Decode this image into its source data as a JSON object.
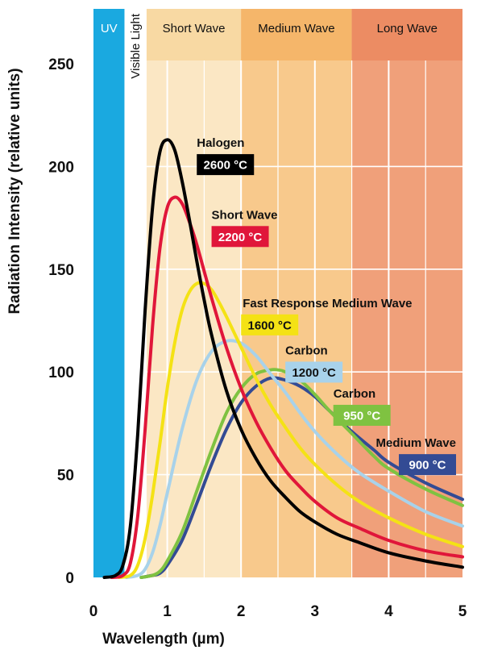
{
  "chart_data": {
    "type": "line",
    "title": "",
    "xlabel": "Wavelength (µm)",
    "ylabel": "Radiation Intensity (relative units)",
    "xlim": [
      0,
      5
    ],
    "ylim": [
      0,
      250
    ],
    "x_ticks": [
      "0",
      "1",
      "2",
      "3",
      "4",
      "5"
    ],
    "y_ticks": [
      "0",
      "50",
      "100",
      "150",
      "200",
      "250"
    ],
    "grid": true,
    "bands": [
      {
        "label": "UV",
        "x_range": [
          0,
          0.42
        ],
        "color": "#1aa9e0",
        "label_color": "#ffffff"
      },
      {
        "label": "Visible Light",
        "x_range": [
          0.42,
          0.72
        ],
        "color": "#ffffff",
        "label_color": "#111111"
      },
      {
        "label": "Short Wave",
        "x_range": [
          0.72,
          2.0
        ],
        "color": "#fbe7c4",
        "label_color": "#111111"
      },
      {
        "label": "Medium Wave",
        "x_range": [
          2.0,
          3.5
        ],
        "color": "#f8c98c",
        "label_color": "#111111"
      },
      {
        "label": "Long Wave",
        "x_range": [
          3.5,
          5.0
        ],
        "color": "#f0a07a",
        "label_color": "#111111"
      }
    ],
    "series": [
      {
        "name": "Halogen",
        "temperature": "2600 °C",
        "color": "#000000",
        "badge_bg": "#000000",
        "badge_text": "#ffffff",
        "label_anchor": [
          1.4,
          206
        ],
        "x": [
          0.3,
          0.4,
          0.5,
          0.6,
          0.7,
          0.8,
          0.9,
          1.0,
          1.1,
          1.2,
          1.3,
          1.4,
          1.5,
          1.6,
          1.8,
          2.0,
          2.2,
          2.4,
          2.6,
          2.8,
          3.0,
          3.3,
          3.6,
          4.0,
          4.5,
          5.0
        ],
        "y": [
          1,
          6,
          25,
          70,
          130,
          180,
          207,
          213,
          208,
          193,
          174,
          154,
          135,
          118,
          91,
          72,
          58,
          47,
          39,
          32,
          27,
          21,
          17,
          12,
          8,
          5
        ]
      },
      {
        "name": "Short Wave",
        "temperature": "2200 °C",
        "color": "#e0163a",
        "badge_bg": "#e0163a",
        "badge_text": "#ffffff",
        "label_anchor": [
          1.6,
          171
        ],
        "x": [
          0.4,
          0.5,
          0.6,
          0.7,
          0.8,
          0.9,
          1.0,
          1.1,
          1.2,
          1.3,
          1.4,
          1.6,
          1.8,
          2.0,
          2.2,
          2.4,
          2.6,
          2.8,
          3.0,
          3.3,
          3.6,
          4.0,
          4.5,
          5.0
        ],
        "y": [
          1,
          7,
          30,
          72,
          122,
          160,
          180,
          185,
          182,
          173,
          162,
          136,
          112,
          92,
          76,
          63,
          52,
          44,
          37,
          29,
          24,
          18,
          13,
          10
        ]
      },
      {
        "name": "Fast Response Medium Wave",
        "temperature": "1600 °C",
        "color": "#f4e215",
        "badge_bg": "#f4e215",
        "badge_text": "#111111",
        "label_anchor": [
          2.0,
          128
        ],
        "x": [
          0.5,
          0.6,
          0.7,
          0.8,
          0.9,
          1.0,
          1.1,
          1.2,
          1.3,
          1.4,
          1.5,
          1.6,
          1.7,
          1.8,
          2.0,
          2.2,
          2.4,
          2.6,
          2.8,
          3.0,
          3.3,
          3.6,
          4.0,
          4.5,
          5.0
        ],
        "y": [
          1,
          6,
          19,
          40,
          65,
          92,
          114,
          130,
          139,
          143,
          143,
          140,
          134,
          127,
          112,
          97,
          84,
          73,
          63,
          55,
          45,
          37,
          29,
          21,
          15
        ]
      },
      {
        "name": "Carbon",
        "temperature": "1200 °C",
        "color": "#a8d2ea",
        "badge_bg": "#a8d2ea",
        "badge_text": "#111111",
        "label_anchor": [
          2.6,
          105
        ],
        "x": [
          0.6,
          0.7,
          0.8,
          0.9,
          1.0,
          1.2,
          1.4,
          1.6,
          1.8,
          2.0,
          2.2,
          2.4,
          2.6,
          2.8,
          3.0,
          3.3,
          3.6,
          4.0,
          4.5,
          5.0
        ],
        "y": [
          1,
          4,
          12,
          25,
          41,
          72,
          96,
          110,
          115,
          114,
          108,
          99,
          90,
          80,
          71,
          60,
          51,
          42,
          32,
          25
        ]
      },
      {
        "name": "Carbon",
        "temperature": "950 °C",
        "color": "#7fc241",
        "badge_bg": "#7fc241",
        "badge_text": "#ffffff",
        "label_anchor": [
          3.25,
          84
        ],
        "x": [
          0.8,
          0.9,
          1.0,
          1.2,
          1.4,
          1.6,
          1.8,
          2.0,
          2.2,
          2.4,
          2.5,
          2.6,
          2.8,
          3.0,
          3.2,
          3.5,
          3.8,
          4.0,
          4.5,
          5.0
        ],
        "y": [
          1,
          3,
          8,
          22,
          42,
          62,
          80,
          92,
          99,
          101,
          101,
          100,
          96,
          89,
          81,
          70,
          59,
          53,
          43,
          35
        ]
      },
      {
        "name": "Medium Wave",
        "temperature": "900 °C",
        "color": "#334b94",
        "badge_bg": "#334b94",
        "badge_text": "#ffffff",
        "label_anchor": [
          4.1,
          60
        ],
        "x": [
          0.8,
          0.9,
          1.0,
          1.2,
          1.4,
          1.6,
          1.8,
          2.0,
          2.2,
          2.4,
          2.6,
          2.8,
          3.0,
          3.2,
          3.5,
          3.8,
          4.0,
          4.5,
          5.0
        ],
        "y": [
          1,
          2,
          6,
          18,
          36,
          55,
          72,
          85,
          93,
          97,
          96,
          93,
          88,
          81,
          71,
          62,
          56,
          46,
          38
        ]
      }
    ]
  }
}
